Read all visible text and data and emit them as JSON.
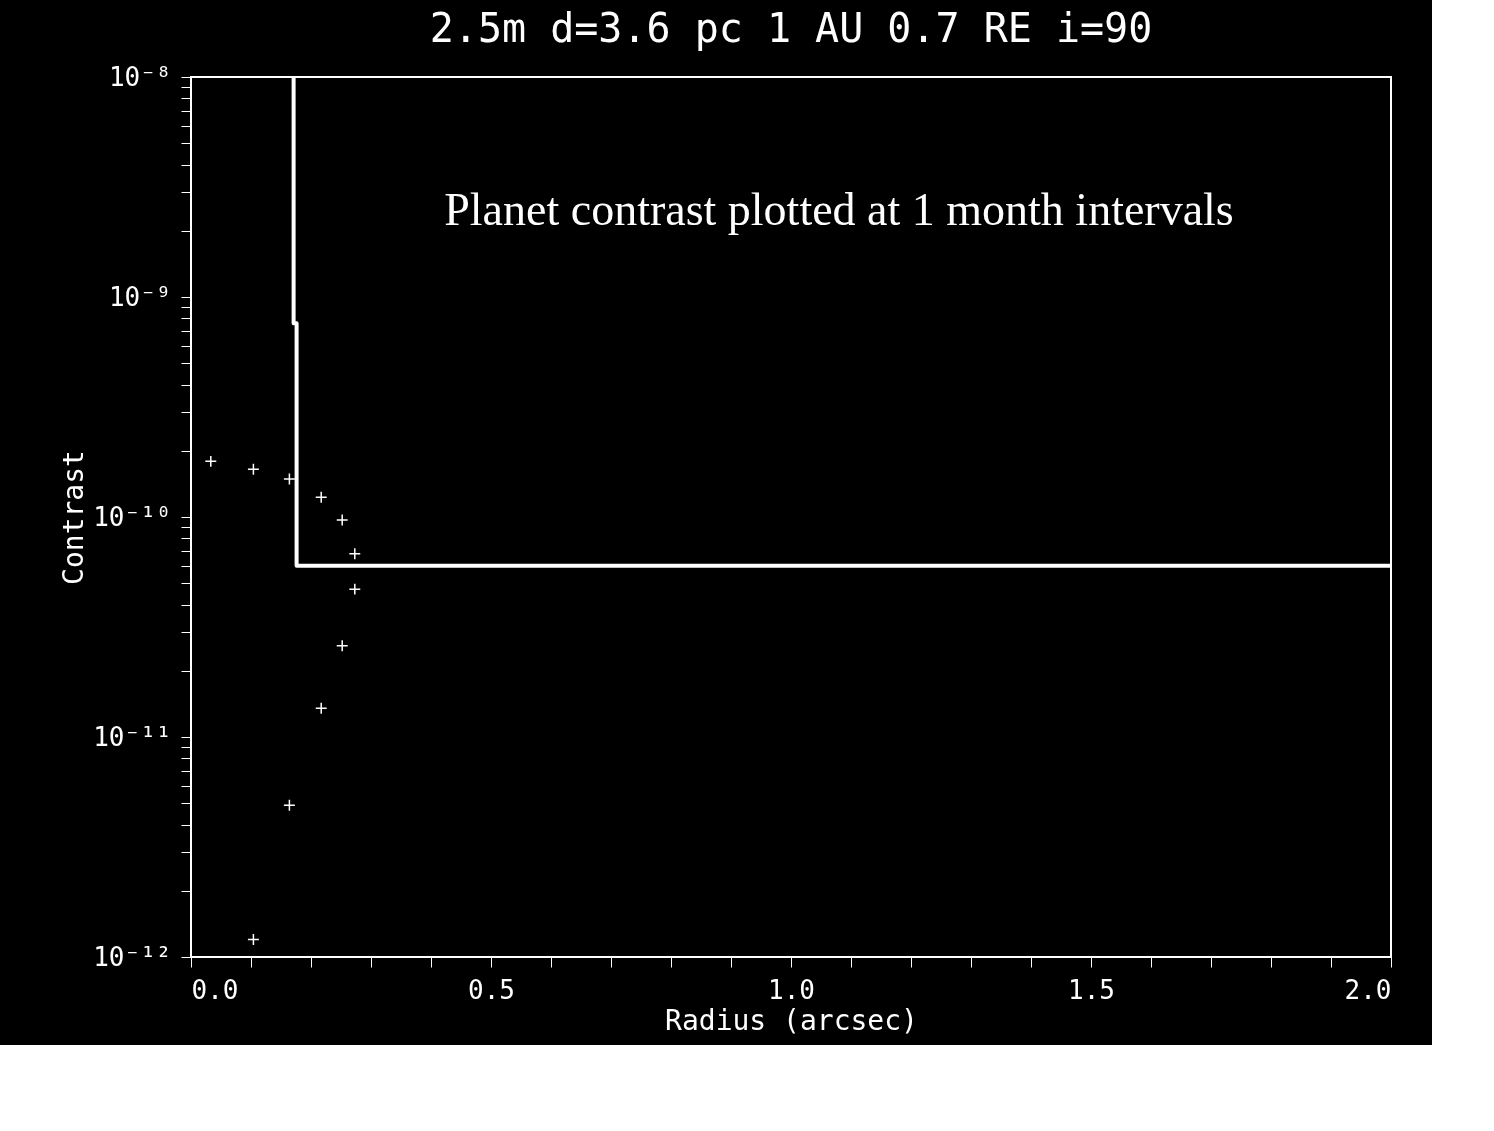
{
  "chart_data": {
    "type": "scatter",
    "title": "2.5m d=3.6 pc 1 AU 0.7 RE i=90",
    "xlabel": "Radius (arcsec)",
    "ylabel": "Contrast",
    "annotations": [
      "Planet contrast plotted at 1 month intervals"
    ],
    "x": [
      0.033,
      0.104,
      0.164,
      0.217,
      0.252,
      0.273,
      0.273,
      0.252,
      0.217,
      0.164,
      0.104
    ],
    "series": [
      {
        "color": "#ffffff",
        "marker": "cross",
        "values": [
          1.79e-10,
          1.65e-10,
          1.49e-10,
          1.23e-10,
          9.7e-11,
          6.8e-11,
          4.7e-11,
          2.6e-11,
          1.35e-11,
          4.9e-12,
          1.2e-12
        ]
      },
      {
        "type": "line",
        "color": "#ffffff",
        "line_style": "solid",
        "marker": "none",
        "x": [
          0.171,
          0.171,
          0.176,
          0.176,
          2.0
        ],
        "values": [
          1e-08,
          7.6e-10,
          7.6e-10,
          6e-11,
          6e-11
        ]
      }
    ],
    "log": "y",
    "grid": false,
    "xlim": [
      0,
      2
    ],
    "ylim": [
      1e-12,
      1e-08
    ],
    "xticks": [
      {
        "value": 0,
        "label": "0.0"
      },
      {
        "value": 0.1,
        "label": null
      },
      {
        "value": 0.2,
        "label": null
      },
      {
        "value": 0.3,
        "label": null
      },
      {
        "value": 0.4,
        "label": null
      },
      {
        "value": 0.5,
        "label": "0.5"
      },
      {
        "value": 0.6,
        "label": null
      },
      {
        "value": 0.7,
        "label": null
      },
      {
        "value": 0.8,
        "label": null
      },
      {
        "value": 0.9,
        "label": null
      },
      {
        "value": 1.0,
        "label": "1.0"
      },
      {
        "value": 1.1,
        "label": null
      },
      {
        "value": 1.2,
        "label": null
      },
      {
        "value": 1.3,
        "label": null
      },
      {
        "value": 1.4,
        "label": null
      },
      {
        "value": 1.5,
        "label": "1.5"
      },
      {
        "value": 1.6,
        "label": null
      },
      {
        "value": 1.7,
        "label": null
      },
      {
        "value": 1.8,
        "label": null
      },
      {
        "value": 1.9,
        "label": null
      },
      {
        "value": 2.0,
        "label": "2.0"
      }
    ],
    "yticks": [
      {
        "value": 1e-12,
        "label": "10⁻¹²"
      },
      {
        "value": 2e-12,
        "label": null
      },
      {
        "value": 3e-12,
        "label": null
      },
      {
        "value": 4e-12,
        "label": null
      },
      {
        "value": 5e-12,
        "label": null
      },
      {
        "value": 6e-12,
        "label": null
      },
      {
        "value": 7e-12,
        "label": null
      },
      {
        "value": 8e-12,
        "label": null
      },
      {
        "value": 9e-12,
        "label": null
      },
      {
        "value": 1e-11,
        "label": "10⁻¹¹"
      },
      {
        "value": 2e-11,
        "label": null
      },
      {
        "value": 3e-11,
        "label": null
      },
      {
        "value": 4e-11,
        "label": null
      },
      {
        "value": 5e-11,
        "label": null
      },
      {
        "value": 6e-11,
        "label": null
      },
      {
        "value": 7e-11,
        "label": null
      },
      {
        "value": 8e-11,
        "label": null
      },
      {
        "value": 9e-11,
        "label": null
      },
      {
        "value": 1e-10,
        "label": "10⁻¹⁰"
      },
      {
        "value": 2e-10,
        "label": null
      },
      {
        "value": 3e-10,
        "label": null
      },
      {
        "value": 4e-10,
        "label": null
      },
      {
        "value": 5e-10,
        "label": null
      },
      {
        "value": 6e-10,
        "label": null
      },
      {
        "value": 7e-10,
        "label": null
      },
      {
        "value": 8e-10,
        "label": null
      },
      {
        "value": 9e-10,
        "label": null
      },
      {
        "value": 1e-09,
        "label": "10⁻⁹"
      },
      {
        "value": 2e-09,
        "label": null
      },
      {
        "value": 3e-09,
        "label": null
      },
      {
        "value": 4e-09,
        "label": null
      },
      {
        "value": 5e-09,
        "label": null
      },
      {
        "value": 6e-09,
        "label": null
      },
      {
        "value": 7e-09,
        "label": null
      },
      {
        "value": 8e-09,
        "label": null
      },
      {
        "value": 9e-09,
        "label": null
      },
      {
        "value": 1e-08,
        "label": "10⁻⁸"
      }
    ]
  }
}
